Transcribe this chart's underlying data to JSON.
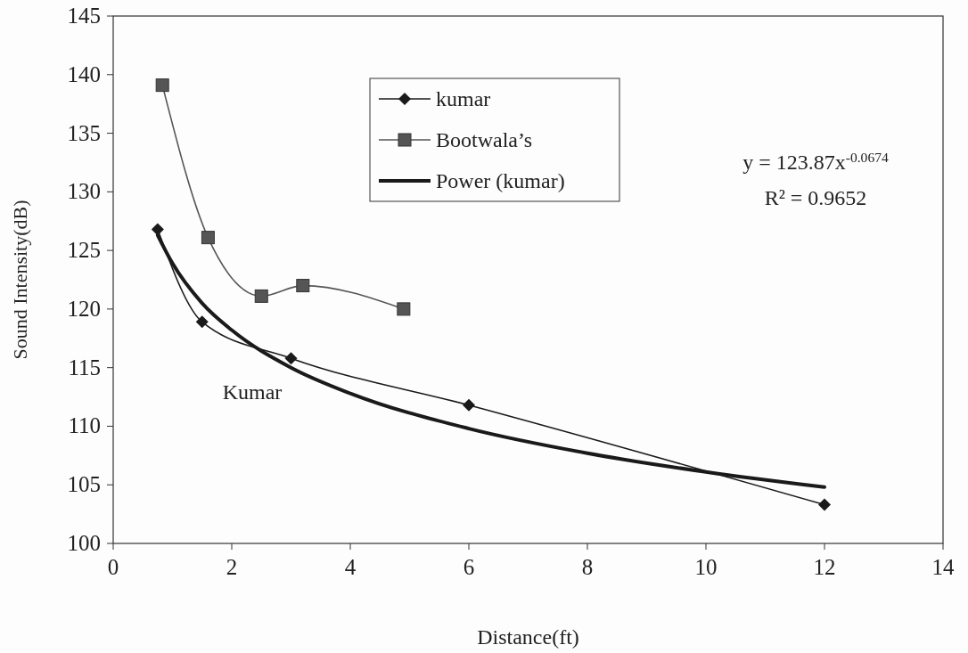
{
  "chart_data": {
    "type": "line",
    "xlabel": "Distance(ft)",
    "ylabel": "Sound Intensity(dB)",
    "xlim": [
      0,
      14
    ],
    "xticks": [
      0,
      2,
      4,
      6,
      8,
      10,
      12,
      14
    ],
    "ylim": [
      100,
      145
    ],
    "yticks": [
      100,
      105,
      110,
      115,
      120,
      125,
      130,
      135,
      140,
      145
    ],
    "grid": false,
    "legend": "top",
    "series": [
      {
        "name": "kumar",
        "color": "#1a1a1a",
        "marker": "diamond",
        "x": [
          0.75,
          1.5,
          3,
          6,
          12
        ],
        "values": [
          126.8,
          118.9,
          115.8,
          111.8,
          103.3
        ]
      },
      {
        "name": "Bootwala’s",
        "color": "#555555",
        "marker": "square",
        "x": [
          0.83,
          1.6,
          2.5,
          3.2,
          4.9
        ],
        "values": [
          139.1,
          126.1,
          121.1,
          122,
          120
        ]
      },
      {
        "name": "Power (kumar)",
        "color": "#1a1a1a",
        "marker": "none",
        "x": [
          0.75,
          1,
          1.5,
          2,
          3,
          4,
          6,
          8,
          10,
          12
        ],
        "values": [
          126.3,
          123.9,
          120.5,
          118.2,
          115,
          112.8,
          109.8,
          107.7,
          106.1,
          104.8
        ]
      }
    ],
    "annotations": [
      "y = 123.87x$^{-0.0674}$",
      "R² = 0.9652",
      "Kumar"
    ]
  }
}
